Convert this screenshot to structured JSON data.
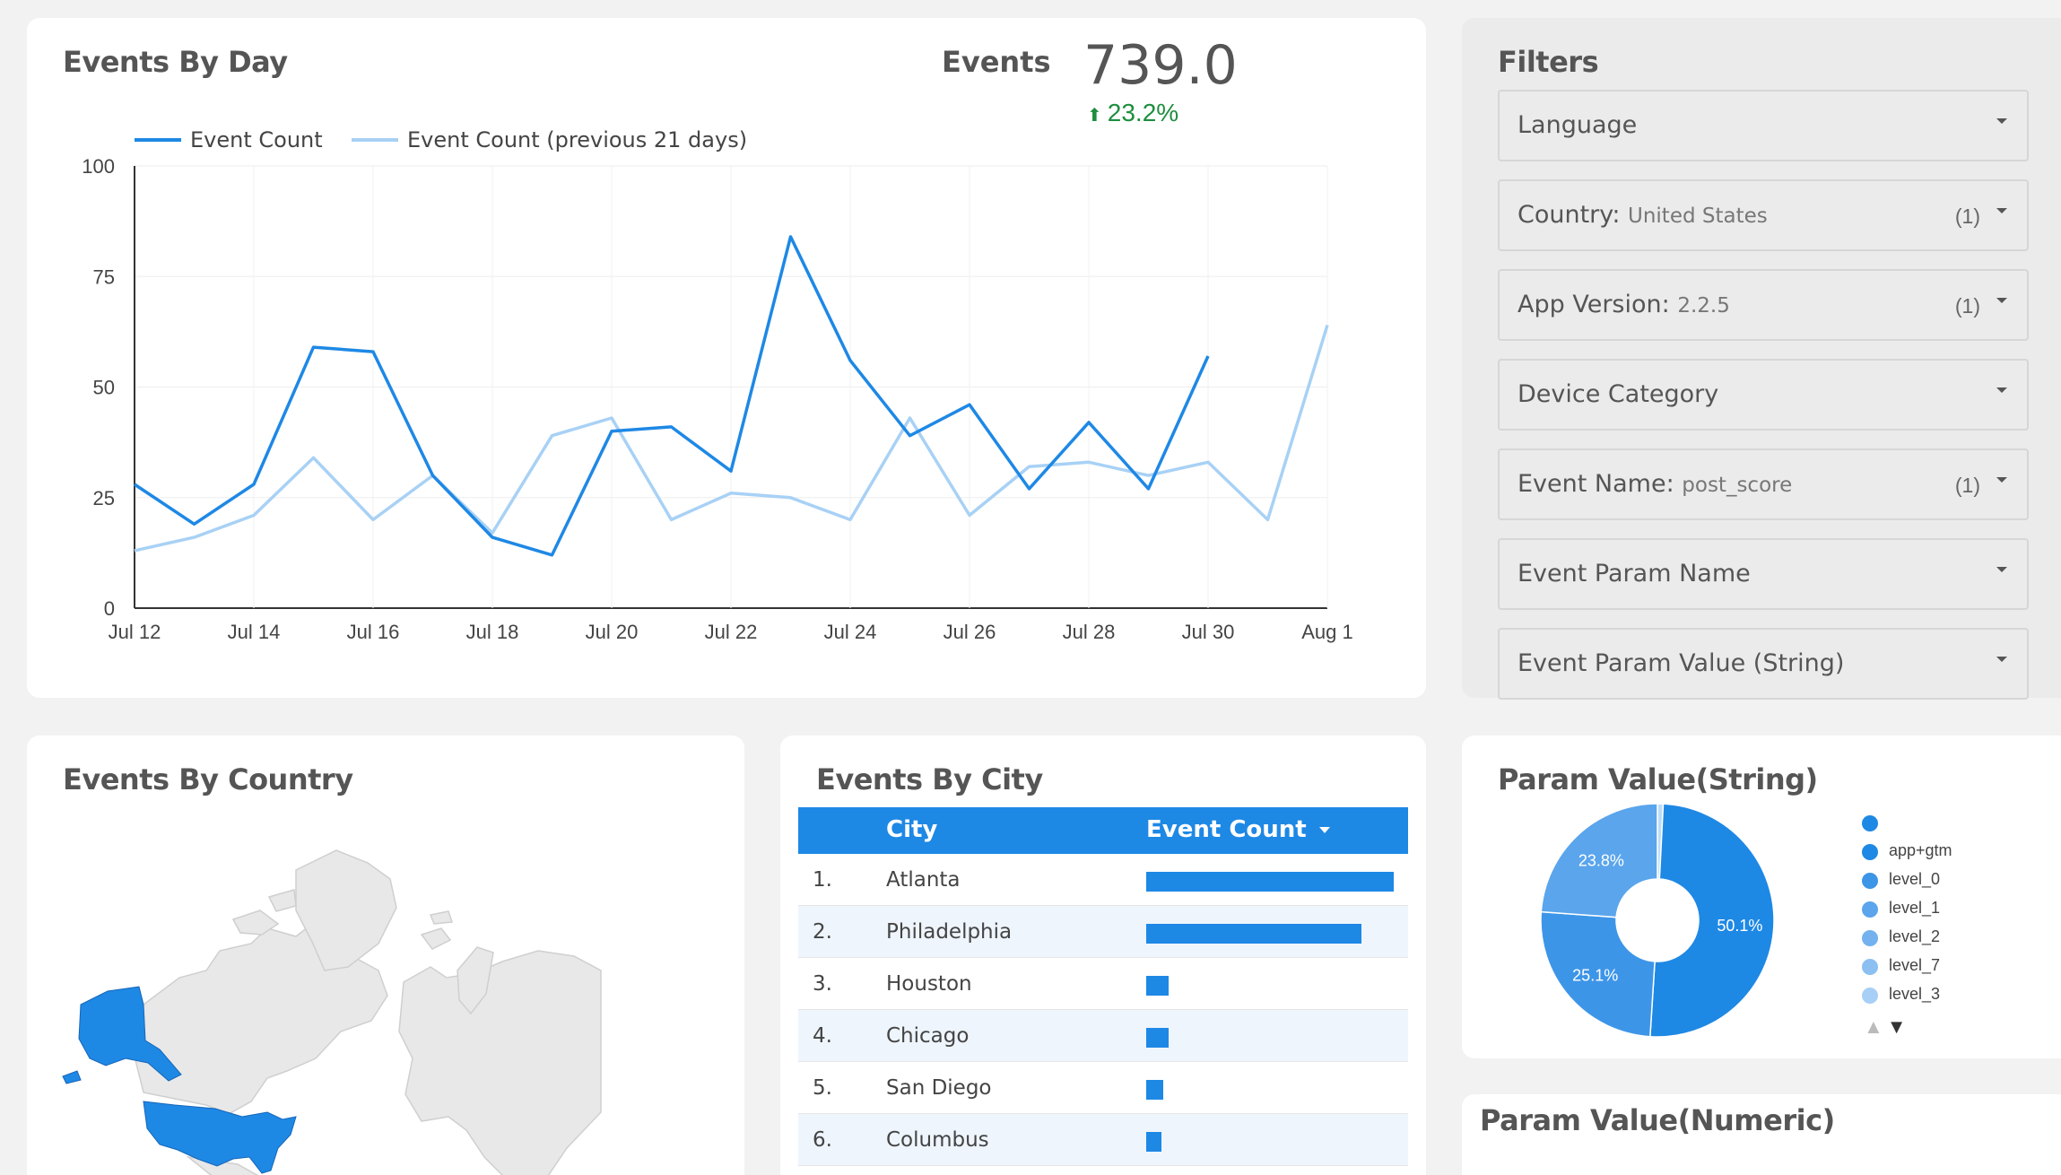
{
  "events_by_day": {
    "title": "Events By Day",
    "scorecard": {
      "label": "Events",
      "value": "739.0",
      "delta": "23.2%",
      "delta_color": "#1e8e3e"
    },
    "legend": [
      "Event Count",
      "Event Count (previous 21 days)"
    ]
  },
  "chart_data": {
    "type": "line",
    "title": "Events By Day",
    "xlabel": "",
    "ylabel": "",
    "ylim": [
      0,
      100
    ],
    "y_ticks": [
      "0",
      "25",
      "50",
      "75",
      "100"
    ],
    "x_tick_labels": [
      "Jul 12",
      "Jul 14",
      "Jul 16",
      "Jul 18",
      "Jul 20",
      "Jul 22",
      "Jul 24",
      "Jul 26",
      "Jul 28",
      "Jul 30",
      "Aug 1"
    ],
    "x": [
      "Jul 12",
      "Jul 13",
      "Jul 14",
      "Jul 15",
      "Jul 16",
      "Jul 17",
      "Jul 18",
      "Jul 19",
      "Jul 20",
      "Jul 21",
      "Jul 22",
      "Jul 23",
      "Jul 24",
      "Jul 25",
      "Jul 26",
      "Jul 27",
      "Jul 28",
      "Jul 29",
      "Jul 30",
      "Jul 31",
      "Aug 1"
    ],
    "series": [
      {
        "name": "Event Count",
        "color": "#1e88e5",
        "values": [
          28,
          19,
          28,
          59,
          58,
          30,
          16,
          12,
          40,
          41,
          31,
          84,
          56,
          39,
          46,
          27,
          42,
          27,
          57,
          null,
          null
        ]
      },
      {
        "name": "Event Count (previous 21 days)",
        "color": "#a8d1f5",
        "values": [
          13,
          16,
          21,
          34,
          20,
          30,
          17,
          39,
          43,
          20,
          26,
          25,
          20,
          43,
          21,
          32,
          33,
          30,
          33,
          20,
          64
        ]
      }
    ],
    "grid": true,
    "legend_position": "top-left"
  },
  "filters": {
    "title": "Filters",
    "items": [
      {
        "name": "Language",
        "value": "",
        "count": ""
      },
      {
        "name": "Country",
        "value": "United States",
        "count": "(1)"
      },
      {
        "name": "App Version",
        "value": "2.2.5",
        "count": "(1)"
      },
      {
        "name": "Device Category",
        "value": "",
        "count": ""
      },
      {
        "name": "Event Name",
        "value": "post_score",
        "count": "(1)"
      },
      {
        "name": "Event Param Name",
        "value": "",
        "count": ""
      },
      {
        "name": "Event Param Value (String)",
        "value": "",
        "count": ""
      }
    ]
  },
  "events_by_country": {
    "title": "Events By Country",
    "highlight_color": "#1e88e5"
  },
  "events_by_city": {
    "title": "Events By City",
    "columns": [
      "City",
      "Event Count"
    ],
    "rows": [
      {
        "rank": "1.",
        "city": "Atlanta",
        "bar": 1.0
      },
      {
        "rank": "2.",
        "city": "Philadelphia",
        "bar": 0.87
      },
      {
        "rank": "3.",
        "city": "Houston",
        "bar": 0.09
      },
      {
        "rank": "4.",
        "city": "Chicago",
        "bar": 0.09
      },
      {
        "rank": "5.",
        "city": "San Diego",
        "bar": 0.07
      },
      {
        "rank": "6.",
        "city": "Columbus",
        "bar": 0.06
      }
    ]
  },
  "param_value_string": {
    "title": "Param Value(String)",
    "slices": [
      {
        "label": "",
        "value": 0.8,
        "color": "#bcdcf8"
      },
      {
        "label": "50.1%",
        "value": 50.1,
        "color": "#1e88e5"
      },
      {
        "label": "25.1%",
        "value": 25.1,
        "color": "#3d95e8"
      },
      {
        "label": "23.8%",
        "value": 23.8,
        "color": "#5aa5ec"
      }
    ],
    "legend": [
      {
        "label": "",
        "color": "#1e88e5"
      },
      {
        "label": "app+gtm",
        "color": "#1e88e5"
      },
      {
        "label": "level_0",
        "color": "#3d95e8"
      },
      {
        "label": "level_1",
        "color": "#5aa5ec"
      },
      {
        "label": "level_2",
        "color": "#73b2ef"
      },
      {
        "label": "level_7",
        "color": "#8cbff2"
      },
      {
        "label": "level_3",
        "color": "#a8cff5"
      }
    ],
    "pager_up": "▲",
    "pager_down": "▼"
  },
  "param_value_numeric": {
    "title": "Param Value(Numeric)"
  }
}
